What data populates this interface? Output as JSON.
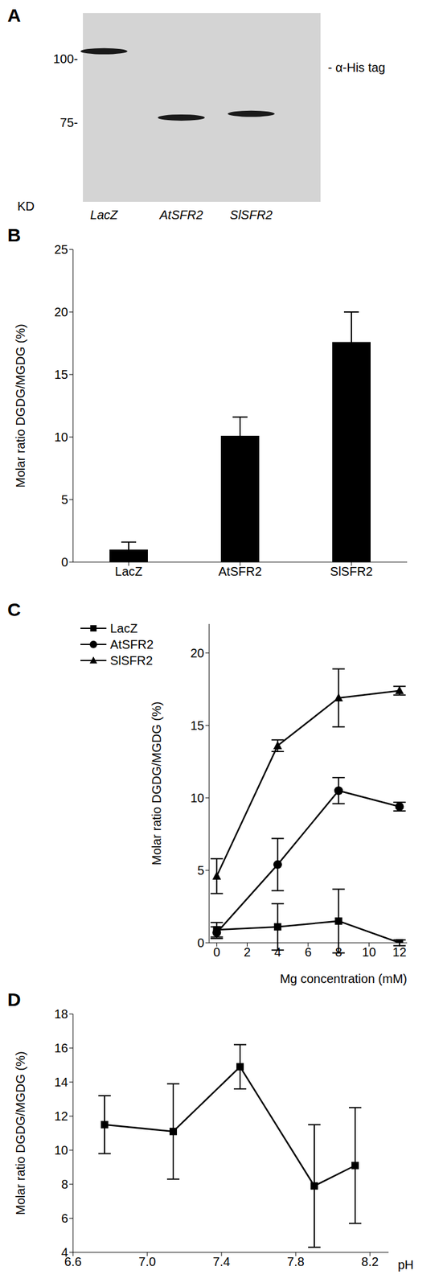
{
  "chart_data": [
    {
      "type": "blot",
      "title": "A",
      "categories": [
        "LacZ",
        "AtSFR2",
        "SlSFR2"
      ],
      "values": [
        103,
        77,
        78.5
      ],
      "ylim": [
        44,
        118
      ],
      "yticks": [
        {
          "value": 100,
          "label": "100-"
        },
        {
          "value": 75,
          "label": "75-"
        }
      ],
      "y_label": "KD",
      "annotation": "- α-His tag",
      "color": "#1a1a1a"
    },
    {
      "type": "bar",
      "title": "B",
      "categories": [
        "LacZ",
        "AtSFR2",
        "SlSFR2"
      ],
      "values": [
        1.0,
        10.1,
        17.6
      ],
      "errors": [
        0.6,
        1.5,
        2.4
      ],
      "ylim": [
        0,
        25
      ],
      "yticks": [
        0,
        5,
        10,
        15,
        20,
        25
      ],
      "y_label": "Molar ratio DGDG/MGDG (%)",
      "color": "#000000"
    },
    {
      "type": "line",
      "title": "C",
      "x": [
        0,
        4,
        8,
        12
      ],
      "xlim": [
        -0.5,
        12.5
      ],
      "xticks": [
        0,
        2,
        4,
        6,
        8,
        10,
        12
      ],
      "ylim": [
        0,
        22
      ],
      "yticks": [
        0,
        5,
        10,
        15,
        20
      ],
      "x_label": "Mg concentration (mM)",
      "y_label": "Molar ratio DGDG/MGDG (%)",
      "legend": "upper left",
      "series": [
        {
          "name": "LacZ",
          "color": "#000000",
          "marker": "square",
          "values": [
            0.9,
            1.1,
            1.5,
            0.0
          ],
          "errors": [
            0.5,
            1.6,
            2.2,
            0.2
          ]
        },
        {
          "name": "AtSFR2",
          "color": "#000000",
          "marker": "circle",
          "values": [
            0.7,
            5.4,
            10.5,
            9.4
          ],
          "errors": [
            0.4,
            1.8,
            0.9,
            0.3
          ]
        },
        {
          "name": "SlSFR2",
          "color": "#000000",
          "marker": "triangle",
          "values": [
            4.6,
            13.6,
            16.9,
            17.4
          ],
          "errors": [
            1.2,
            0.4,
            2.0,
            0.3
          ]
        }
      ]
    },
    {
      "type": "line",
      "title": "D",
      "x": [
        6.77,
        7.14,
        7.5,
        7.9,
        8.12
      ],
      "xlim": [
        6.6,
        8.3
      ],
      "xticks": [
        6.6,
        {
          "value": 7,
          "label": "7.0"
        },
        7.4,
        7.8,
        8.2
      ],
      "ylim": [
        4,
        18
      ],
      "yticks": [
        4,
        6,
        8,
        10,
        12,
        14,
        16,
        18
      ],
      "x_label": "pH",
      "y_label": "Molar ratio DGDG/MGDG (%)",
      "series": [
        {
          "name": "",
          "color": "#000000",
          "marker": "square",
          "values": [
            11.5,
            11.1,
            14.9,
            7.9,
            9.1
          ],
          "errors": [
            1.7,
            2.8,
            1.3,
            3.6,
            3.4
          ]
        }
      ]
    }
  ]
}
